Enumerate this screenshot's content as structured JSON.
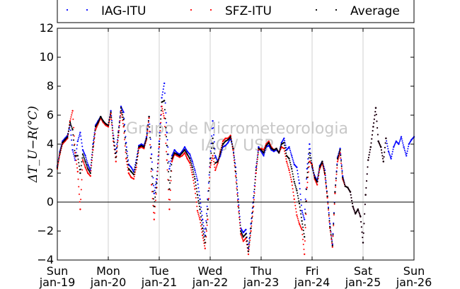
{
  "chart_data": {
    "type": "scatter",
    "ylabel": "ΔT_U−R(°C)",
    "ylim": [
      -4,
      12
    ],
    "yticks": [
      -4,
      -2,
      0,
      2,
      4,
      6,
      8,
      10,
      12
    ],
    "ytick_labels": [
      "−4",
      "−2",
      "0",
      "2",
      "4",
      "6",
      "8",
      "10",
      "12"
    ],
    "xlim": [
      0,
      7
    ],
    "xticks": [
      {
        "x": 0,
        "day": "Sun",
        "date": "jan-19"
      },
      {
        "x": 1,
        "day": "Mon",
        "date": "jan-20"
      },
      {
        "x": 2,
        "day": "Tue",
        "date": "jan-21"
      },
      {
        "x": 3,
        "day": "Wed",
        "date": "jan-22"
      },
      {
        "x": 4,
        "day": "Thu",
        "date": "jan-23"
      },
      {
        "x": 5,
        "day": "Fri",
        "date": "jan-24"
      },
      {
        "x": 6,
        "day": "Sat",
        "date": "jan-25"
      },
      {
        "x": 7,
        "day": "Sun",
        "date": "jan-26"
      }
    ],
    "grid": "vertical",
    "reference_line_y": 0,
    "legend_position": "top",
    "watermark": [
      "Grupo de Micrometeorologia",
      "IAG / USP"
    ],
    "series": [
      {
        "name": "IAG-ITU",
        "color": "#0000ff",
        "x": [
          0,
          0.05,
          0.1,
          0.15,
          0.2,
          0.25,
          0.3,
          0.35,
          0.4,
          0.45,
          0.5,
          0.55,
          0.6,
          0.65,
          0.7,
          0.75,
          0.8,
          0.85,
          0.9,
          0.95,
          1,
          1.05,
          1.1,
          1.15,
          1.2,
          1.25,
          1.3,
          1.35,
          1.4,
          1.45,
          1.5,
          1.55,
          1.6,
          1.65,
          1.7,
          1.75,
          1.8,
          1.85,
          1.9,
          1.95,
          2,
          2.05,
          2.1,
          2.15,
          2.2,
          2.25,
          2.3,
          2.35,
          2.4,
          2.45,
          2.5,
          2.55,
          2.6,
          2.65,
          2.7,
          2.75,
          2.8,
          2.85,
          2.9,
          2.95,
          3,
          3.05,
          3.1,
          3.15,
          3.2,
          3.25,
          3.3,
          3.35,
          3.4,
          3.45,
          3.5,
          3.55,
          3.6,
          3.65,
          3.7,
          3.75,
          3.8,
          3.85,
          3.9,
          3.95,
          4,
          4.05,
          4.1,
          4.15,
          4.2,
          4.25,
          4.3,
          4.35,
          4.4,
          4.45,
          4.5,
          4.55,
          4.6,
          4.65,
          4.7,
          4.75,
          4.8,
          4.85,
          4.9,
          4.95,
          5,
          5.05,
          5.1,
          5.15,
          5.2,
          5.25,
          5.3,
          5.35,
          5.4,
          5.45,
          5.5,
          5.55,
          5.6,
          5.65,
          5.7,
          5.75,
          5.8,
          5.85,
          5.9,
          5.95,
          6,
          6.05,
          6.1,
          6.15,
          6.2,
          6.25,
          6.3,
          6.35,
          6.4,
          6.45,
          6.5,
          6.55,
          6.6,
          6.65,
          6.7,
          6.75,
          6.8,
          6.85,
          6.9,
          6.95,
          7
        ],
        "y": [
          2.5,
          3.5,
          4.2,
          4.4,
          4.6,
          5.3,
          3.6,
          2.9,
          4.2,
          4.8,
          3.6,
          3.2,
          2.6,
          2.2,
          4,
          5.3,
          5.6,
          5.9,
          5.6,
          5.4,
          5.3,
          6.3,
          4.6,
          3.4,
          4.9,
          6.6,
          6.2,
          4.1,
          2.6,
          2.4,
          2.1,
          2.9,
          3.9,
          4,
          3.9,
          4.5,
          5.9,
          3.3,
          0.6,
          1.6,
          4.2,
          7.2,
          8.2,
          4.8,
          2.3,
          3.2,
          3.6,
          3.4,
          3.3,
          3.5,
          3.8,
          3.5,
          3.3,
          2.8,
          2.2,
          1.5,
          0.2,
          -1.2,
          -2.3,
          0.2,
          3,
          5.6,
          3.2,
          2.8,
          3.2,
          3.8,
          3.9,
          4.1,
          4.4,
          3.7,
          2.4,
          0.2,
          -1.8,
          -2.1,
          -1.9,
          -3.2,
          -1.5,
          0.3,
          2.4,
          3.8,
          3.5,
          3.2,
          3.8,
          3.9,
          3.6,
          3.5,
          3.6,
          3.4,
          4.1,
          4.4,
          3.6,
          3.8,
          3.2,
          2.6,
          2.4,
          1.3,
          -0.6,
          -1.2,
          2.3,
          4,
          2.4,
          1.8,
          1.5,
          2.5,
          2.8,
          2.2,
          0.4,
          -1.5,
          -2.9,
          0.7,
          3.1,
          3.7,
          1.8,
          1.1,
          1,
          0.7,
          -0.3,
          -0.8,
          -0.5,
          -1,
          -2.8,
          0.5,
          2.9,
          3.8,
          5.2,
          6.5,
          4.2,
          3.8,
          2.8,
          4.4,
          3.5,
          3,
          3.8,
          4.2,
          4,
          4.5,
          3.8,
          3.2,
          4,
          4.3,
          4.5
        ]
      },
      {
        "name": "SFZ-ITU",
        "color": "#ff0000",
        "x": [
          0,
          0.05,
          0.1,
          0.15,
          0.2,
          0.25,
          0.3,
          0.35,
          0.4,
          0.45,
          0.5,
          0.55,
          0.6,
          0.65,
          0.7,
          0.75,
          0.8,
          0.85,
          0.9,
          0.95,
          1,
          1.05,
          1.1,
          1.15,
          1.2,
          1.25,
          1.3,
          1.35,
          1.4,
          1.45,
          1.5,
          1.55,
          1.6,
          1.65,
          1.7,
          1.75,
          1.8,
          1.85,
          1.9,
          1.95,
          2,
          2.05,
          2.1,
          2.15,
          2.2,
          2.25,
          2.3,
          2.35,
          2.4,
          2.45,
          2.5,
          2.55,
          2.6,
          2.65,
          2.7,
          2.75,
          2.8,
          2.85,
          2.9,
          2.95,
          3,
          3.05,
          3.1,
          3.15,
          3.2,
          3.25,
          3.3,
          3.35,
          3.4,
          3.45,
          3.5,
          3.55,
          3.6,
          3.65,
          3.7,
          3.75,
          3.8,
          3.85,
          3.9,
          3.95,
          4,
          4.05,
          4.1,
          4.15,
          4.2,
          4.25,
          4.3,
          4.35,
          4.4,
          4.45,
          4.5,
          4.55,
          4.6,
          4.65,
          4.7,
          4.75,
          4.8,
          4.85,
          4.9,
          4.95,
          5,
          5.05,
          5.1,
          5.15,
          5.2,
          5.25,
          5.3,
          5.35,
          5.4,
          5.45,
          5.5,
          5.55,
          5.6,
          5.65,
          5.7,
          5.75,
          5.8,
          5.85,
          5.9,
          5.95,
          6,
          6.05,
          6.1,
          6.15,
          6.2,
          6.25,
          6.3,
          6.35,
          6.4,
          6.45
        ],
        "y": [
          2.3,
          3.3,
          4,
          4.2,
          4.4,
          5.6,
          6.3,
          3.4,
          2.1,
          -0.5,
          2.9,
          2.4,
          2,
          1.8,
          3.6,
          5,
          5.4,
          5.8,
          5.5,
          5.3,
          5.2,
          6.1,
          4.2,
          2.8,
          4.6,
          6.3,
          5.2,
          3,
          2,
          1.7,
          1.6,
          2.4,
          3.7,
          3.8,
          3.7,
          4.3,
          5.8,
          1.2,
          -1.2,
          1,
          3.8,
          6.6,
          5.8,
          2.9,
          -0.5,
          2.8,
          3.3,
          3.2,
          3.1,
          3.2,
          3.4,
          3,
          2.7,
          1.9,
          0.9,
          -0.6,
          -1.2,
          -2.3,
          -3.2,
          -1.2,
          2.4,
          3.2,
          2.2,
          2.7,
          3.5,
          4.2,
          4.4,
          4.4,
          4.6,
          3.6,
          1.8,
          -0.3,
          -2.2,
          -2.7,
          -2.5,
          -3.6,
          -2,
          -0.3,
          2,
          3.6,
          3.7,
          3.6,
          4,
          4.2,
          3.8,
          3.6,
          3.7,
          3.4,
          3.8,
          3.7,
          2.8,
          2.2,
          1.4,
          0.2,
          -0.9,
          -1.5,
          -1.9,
          -3.6,
          1,
          2.8,
          2.6,
          1.6,
          1.2,
          2.3,
          2.7,
          1.9,
          0.3,
          -1.8,
          -3.1,
          0.6,
          2.8,
          3.4,
          1.6,
          1.1,
          1,
          0.7,
          -0.3,
          -0.8,
          -0.5,
          -1,
          -2.8,
          0.5,
          2.9,
          3.8,
          5.2,
          6.5,
          4.2,
          3.8,
          2.8,
          4.4
        ]
      },
      {
        "name": "Average",
        "color": "#000000",
        "x": [
          0,
          0.05,
          0.1,
          0.15,
          0.2,
          0.25,
          0.3,
          0.35,
          0.4,
          0.45,
          0.5,
          0.55,
          0.6,
          0.65,
          0.7,
          0.75,
          0.8,
          0.85,
          0.9,
          0.95,
          1,
          1.05,
          1.1,
          1.15,
          1.2,
          1.25,
          1.3,
          1.35,
          1.4,
          1.45,
          1.5,
          1.55,
          1.6,
          1.65,
          1.7,
          1.75,
          1.8,
          1.85,
          1.9,
          1.95,
          2,
          2.05,
          2.1,
          2.15,
          2.2,
          2.25,
          2.3,
          2.35,
          2.4,
          2.45,
          2.5,
          2.55,
          2.6,
          2.65,
          2.7,
          2.75,
          2.8,
          2.85,
          2.9,
          2.95,
          3,
          3.05,
          3.1,
          3.15,
          3.2,
          3.25,
          3.3,
          3.35,
          3.4,
          3.45,
          3.5,
          3.55,
          3.6,
          3.65,
          3.7,
          3.75,
          3.8,
          3.85,
          3.9,
          3.95,
          4,
          4.05,
          4.1,
          4.15,
          4.2,
          4.25,
          4.3,
          4.35,
          4.4,
          4.45,
          4.5,
          4.55,
          4.6,
          4.65,
          4.7,
          4.75,
          4.8,
          4.85,
          4.9,
          4.95,
          5,
          5.05,
          5.1,
          5.15,
          5.2,
          5.25,
          5.3,
          5.35,
          5.4,
          5.45,
          5.5,
          5.55,
          5.6,
          5.65,
          5.7,
          5.75,
          5.8,
          5.85,
          5.9,
          5.95,
          6,
          6.05,
          6.1,
          6.15,
          6.2,
          6.25,
          6.3,
          6.35,
          6.4,
          6.45
        ],
        "y": [
          2.4,
          3.4,
          4.1,
          4.3,
          4.5,
          5.5,
          5,
          3.2,
          3.2,
          2,
          3.3,
          2.8,
          2.3,
          2,
          3.8,
          5.2,
          5.5,
          5.9,
          5.6,
          5.4,
          5.3,
          6.2,
          4.4,
          3.1,
          4.8,
          6.5,
          5.7,
          3.6,
          2.3,
          2.1,
          1.9,
          2.7,
          3.8,
          3.9,
          3.8,
          4.4,
          5.9,
          2.3,
          -0.3,
          1.3,
          4,
          6.9,
          7,
          3.9,
          0.9,
          3,
          3.4,
          3.3,
          3.2,
          3.4,
          3.6,
          3.3,
          3,
          2.4,
          1.6,
          0.5,
          -0.5,
          -1.8,
          -2.8,
          -0.5,
          2.7,
          4.4,
          2.7,
          2.8,
          3.4,
          4,
          4.2,
          4.3,
          4.5,
          3.7,
          2.1,
          0,
          -2,
          -2.4,
          -2.2,
          -3.4,
          -1.8,
          0,
          2.2,
          3.7,
          3.6,
          3.4,
          3.9,
          4.1,
          3.7,
          3.6,
          3.7,
          3.4,
          4,
          4.1,
          3.2,
          3,
          2.3,
          1.4,
          0.8,
          -0.1,
          -1.3,
          -2.4,
          1.7,
          3.4,
          2.5,
          1.7,
          1.4,
          2.4,
          2.8,
          2,
          0.4,
          -1.7,
          -3,
          0.7,
          3,
          3.6,
          1.7,
          1.1,
          1,
          0.7,
          -0.3,
          -0.8,
          -0.5,
          -1,
          -2.8,
          0.5,
          2.9,
          3.8,
          5.2,
          6.5,
          4.2,
          3.8,
          2.8,
          4.4
        ]
      }
    ]
  }
}
